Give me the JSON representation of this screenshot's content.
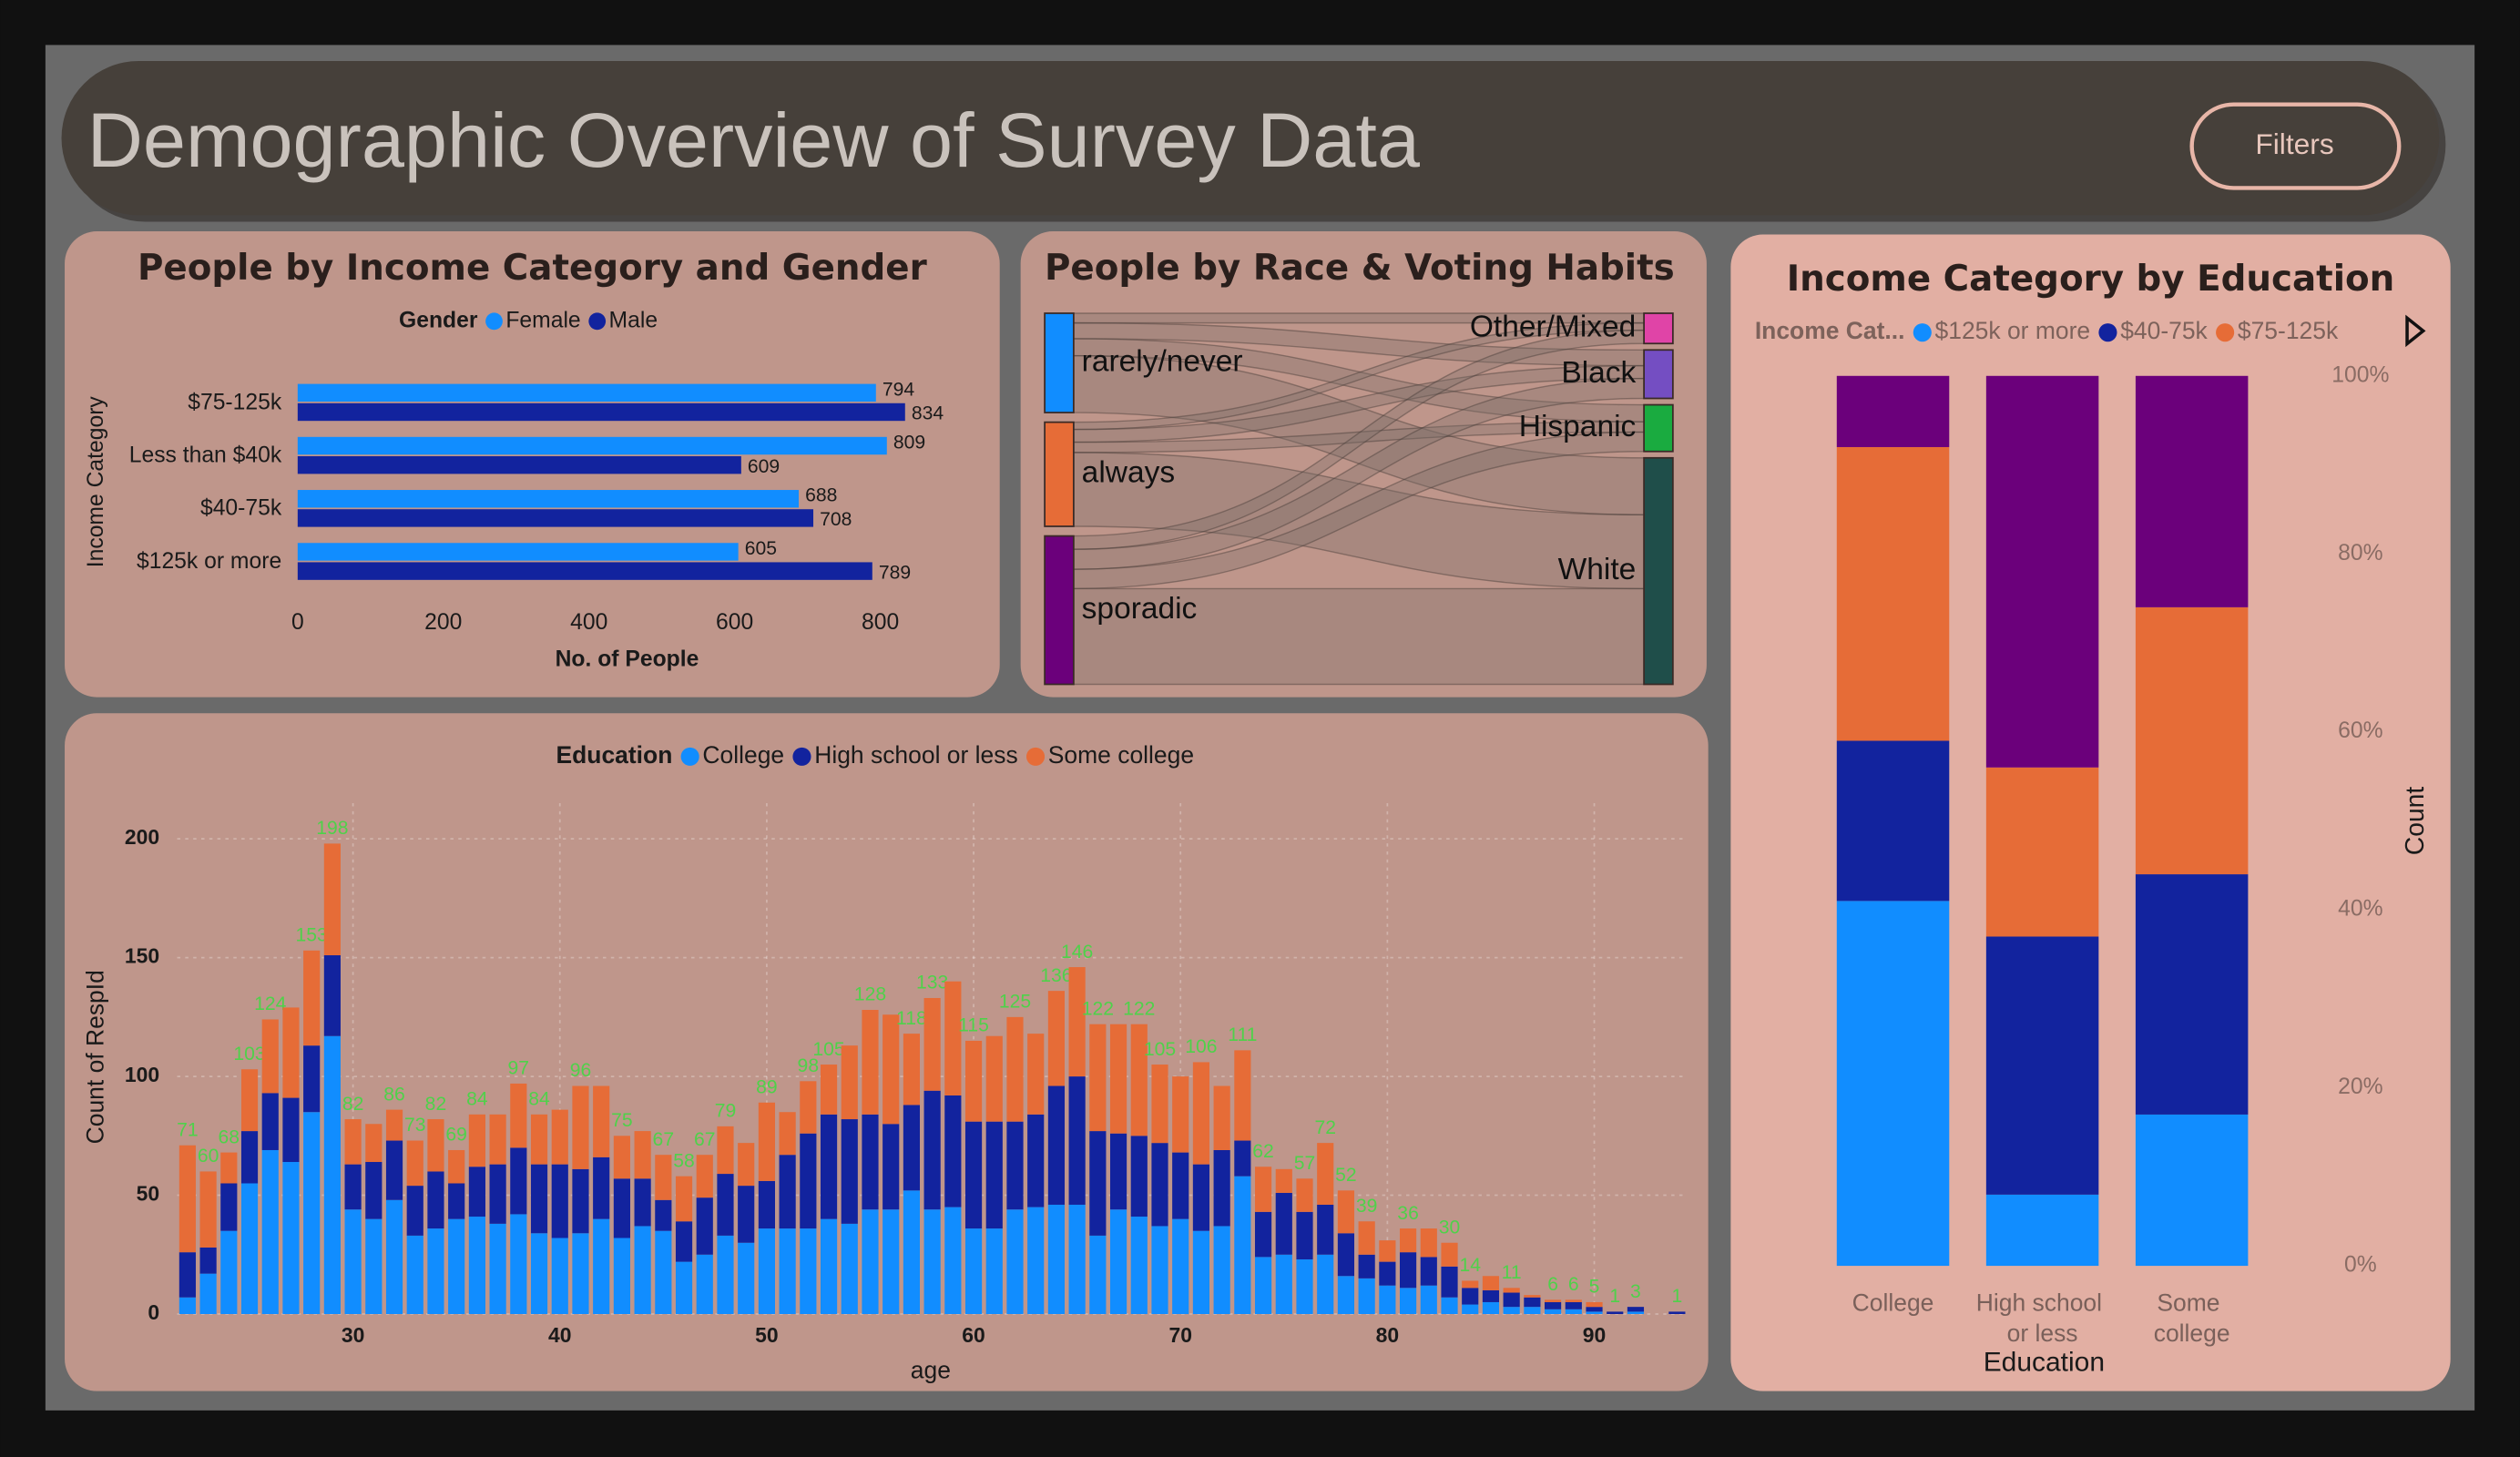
{
  "header": {
    "title": "Demographic Overview of Survey Data",
    "button": "Filters"
  },
  "chart_data": [
    {
      "type": "hbar",
      "title": "People by Income Category and Gender",
      "legend_title": "Gender",
      "categories": [
        "$75-125k",
        "Less than $40k",
        "$40-75k",
        "$125k or more"
      ],
      "series": [
        {
          "name": "Female",
          "color": "#118dff",
          "values": [
            794,
            809,
            688,
            605
          ]
        },
        {
          "name": "Male",
          "color": "#12239e",
          "values": [
            834,
            609,
            708,
            789
          ]
        }
      ],
      "xlim": [
        0,
        900
      ],
      "xticks": [
        0,
        200,
        400,
        600,
        800
      ],
      "xlabel": "No. of People",
      "ylabel": "Income Category"
    },
    {
      "type": "sankey",
      "title": "People by Race & Voting Habits",
      "sources": [
        {
          "name": "rarely/never",
          "color": "#118dff"
        },
        {
          "name": "always",
          "color": "#e66c37"
        },
        {
          "name": "sporadic",
          "color": "#6b007b"
        }
      ],
      "targets": [
        {
          "name": "Other/Mixed",
          "color": "#e044a7"
        },
        {
          "name": "Black",
          "color": "#744ec2"
        },
        {
          "name": "Hispanic",
          "color": "#1aab40"
        },
        {
          "name": "White",
          "color": "#1f4e4a"
        }
      ],
      "links": [
        {
          "source": 0,
          "target": 0,
          "value": 160
        },
        {
          "source": 0,
          "target": 1,
          "value": 260
        },
        {
          "source": 0,
          "target": 2,
          "value": 280
        },
        {
          "source": 0,
          "target": 3,
          "value": 940
        },
        {
          "source": 1,
          "target": 0,
          "value": 120
        },
        {
          "source": 1,
          "target": 1,
          "value": 210
        },
        {
          "source": 1,
          "target": 2,
          "value": 170
        },
        {
          "source": 1,
          "target": 3,
          "value": 1220
        },
        {
          "source": 2,
          "target": 0,
          "value": 220
        },
        {
          "source": 2,
          "target": 1,
          "value": 330
        },
        {
          "source": 2,
          "target": 2,
          "value": 320
        },
        {
          "source": 2,
          "target": 3,
          "value": 1580
        }
      ]
    },
    {
      "type": "stacked_bar",
      "legend_title": "Education",
      "x": [
        22,
        23,
        24,
        25,
        26,
        27,
        28,
        29,
        30,
        31,
        32,
        33,
        34,
        35,
        36,
        37,
        38,
        39,
        40,
        41,
        42,
        43,
        44,
        45,
        46,
        47,
        48,
        49,
        50,
        51,
        52,
        53,
        54,
        55,
        56,
        57,
        58,
        59,
        60,
        61,
        62,
        63,
        64,
        65,
        66,
        67,
        68,
        69,
        70,
        71,
        72,
        73,
        74,
        75,
        76,
        77,
        78,
        79,
        80,
        81,
        82,
        83,
        84,
        85,
        86,
        87,
        88,
        89,
        90,
        91,
        92,
        94
      ],
      "series": [
        {
          "name": "College",
          "color": "#118dff",
          "values": [
            7,
            17,
            35,
            55,
            69,
            64,
            85,
            117,
            44,
            40,
            48,
            33,
            36,
            40,
            41,
            38,
            42,
            34,
            32,
            34,
            40,
            32,
            37,
            35,
            22,
            25,
            33,
            30,
            36,
            36,
            36,
            40,
            38,
            44,
            44,
            52,
            44,
            45,
            36,
            36,
            44,
            45,
            46,
            46,
            33,
            44,
            41,
            37,
            40,
            35,
            37,
            58,
            24,
            25,
            23,
            25,
            16,
            15,
            12,
            11,
            12,
            7,
            4,
            5,
            3,
            3,
            2,
            2,
            1,
            0,
            1,
            0
          ]
        },
        {
          "name": "High school or less",
          "color": "#12239e",
          "values": [
            19,
            11,
            20,
            22,
            24,
            27,
            28,
            34,
            19,
            24,
            25,
            21,
            24,
            15,
            21,
            25,
            28,
            29,
            31,
            27,
            26,
            25,
            20,
            13,
            17,
            24,
            26,
            24,
            20,
            31,
            40,
            44,
            44,
            40,
            36,
            36,
            50,
            47,
            45,
            45,
            37,
            39,
            50,
            54,
            44,
            32,
            34,
            35,
            28,
            28,
            32,
            15,
            19,
            26,
            20,
            21,
            18,
            10,
            10,
            15,
            12,
            13,
            7,
            5,
            6,
            4,
            3,
            3,
            2,
            1,
            2,
            1
          ]
        },
        {
          "name": "Some college",
          "color": "#e66c37",
          "values": [
            45,
            32,
            13,
            26,
            31,
            38,
            40,
            47,
            19,
            16,
            13,
            19,
            22,
            14,
            22,
            21,
            27,
            21,
            23,
            35,
            30,
            18,
            20,
            19,
            19,
            18,
            20,
            18,
            33,
            18,
            22,
            21,
            31,
            44,
            46,
            30,
            39,
            48,
            34,
            36,
            44,
            34,
            40,
            46,
            45,
            46,
            47,
            33,
            32,
            43,
            27,
            38,
            19,
            10,
            14,
            26,
            18,
            14,
            9,
            10,
            12,
            10,
            3,
            6,
            2,
            1,
            1,
            1,
            2,
            0,
            0,
            0
          ]
        }
      ],
      "totals": [
        71,
        60,
        68,
        103,
        124,
        null,
        153,
        198,
        82,
        null,
        86,
        73,
        82,
        69,
        84,
        null,
        97,
        84,
        null,
        96,
        null,
        75,
        null,
        67,
        58,
        67,
        79,
        null,
        89,
        null,
        98,
        105,
        null,
        128,
        null,
        118,
        133,
        null,
        115,
        null,
        125,
        null,
        136,
        146,
        122,
        null,
        122,
        105,
        null,
        106,
        null,
        111,
        62,
        null,
        57,
        72,
        52,
        39,
        null,
        36,
        null,
        30,
        14,
        null,
        11,
        null,
        6,
        6,
        5,
        1,
        3,
        1
      ],
      "xlim": [
        21.5,
        94.5
      ],
      "xticks": [
        30,
        40,
        50,
        60,
        70,
        80,
        90
      ],
      "ylim": [
        0,
        215
      ],
      "yticks": [
        0,
        50,
        100,
        150,
        200
      ],
      "grid": true,
      "xlabel": "age",
      "ylabel": "Count of RespId"
    },
    {
      "type": "stacked_percent",
      "title": "Income Category by Education",
      "legend_title": "Income Cat...",
      "categories": [
        "College",
        "High school or less",
        "Some college"
      ],
      "series": [
        {
          "name": "$125k or more",
          "color": "#118dff",
          "values": [
            41,
            8,
            17
          ]
        },
        {
          "name": "$40-75k",
          "color": "#12239e",
          "values": [
            18,
            29,
            27
          ]
        },
        {
          "name": "$75-125k",
          "color": "#e66c37",
          "values": [
            33,
            19,
            30
          ]
        },
        {
          "color": "#6b007b",
          "values": [
            8,
            44,
            26
          ]
        }
      ],
      "ylim": [
        0,
        100
      ],
      "yticks": [
        {
          "value": 0,
          "label": "0%"
        },
        {
          "value": 20,
          "label": "20%"
        },
        {
          "value": 40,
          "label": "40%"
        },
        {
          "value": 60,
          "label": "60%"
        },
        {
          "value": 80,
          "label": "80%"
        },
        {
          "value": 100,
          "label": "100%"
        }
      ],
      "xlabel": "Education",
      "ylabel": "Count"
    }
  ]
}
